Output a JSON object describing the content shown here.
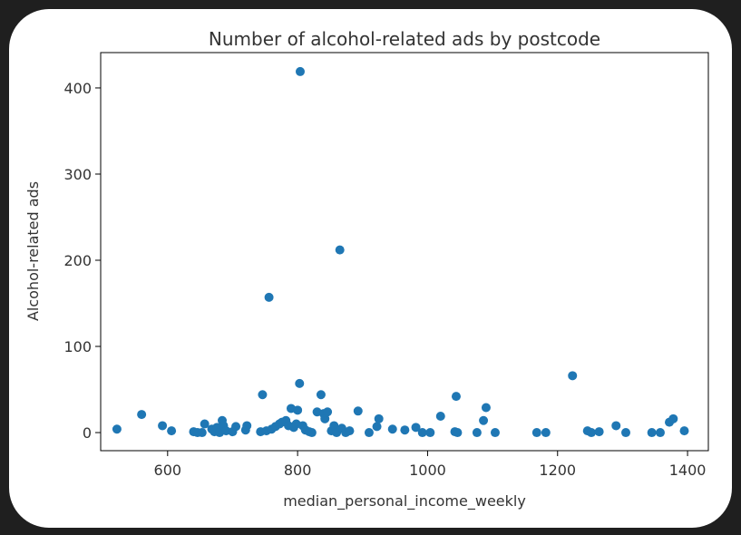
{
  "chart_data": {
    "type": "scatter",
    "title": "Number of alcohol-related ads by postcode",
    "xlabel": "median_personal_income_weekly",
    "ylabel": "Alcohol-related ads",
    "xlim": [
      497,
      1432
    ],
    "ylim": [
      -21,
      441
    ],
    "xticks": [
      600,
      800,
      1000,
      1200,
      1400
    ],
    "yticks": [
      0,
      100,
      200,
      300,
      400
    ],
    "grid": false,
    "marker_color": "#1f77b4",
    "points": [
      [
        522,
        4
      ],
      [
        560,
        21
      ],
      [
        592,
        8
      ],
      [
        606,
        2
      ],
      [
        640,
        1
      ],
      [
        646,
        0
      ],
      [
        653,
        0
      ],
      [
        657,
        10
      ],
      [
        668,
        4
      ],
      [
        672,
        1
      ],
      [
        676,
        6
      ],
      [
        680,
        0
      ],
      [
        684,
        14
      ],
      [
        686,
        8
      ],
      [
        690,
        2
      ],
      [
        700,
        1
      ],
      [
        705,
        7
      ],
      [
        720,
        3
      ],
      [
        722,
        8
      ],
      [
        743,
        1
      ],
      [
        746,
        44
      ],
      [
        752,
        2
      ],
      [
        756,
        157
      ],
      [
        760,
        4
      ],
      [
        766,
        7
      ],
      [
        772,
        10
      ],
      [
        776,
        12
      ],
      [
        782,
        14
      ],
      [
        786,
        8
      ],
      [
        790,
        28
      ],
      [
        794,
        6
      ],
      [
        798,
        10
      ],
      [
        800,
        26
      ],
      [
        803,
        57
      ],
      [
        804,
        419
      ],
      [
        808,
        8
      ],
      [
        812,
        3
      ],
      [
        818,
        1
      ],
      [
        822,
        0
      ],
      [
        830,
        24
      ],
      [
        836,
        44
      ],
      [
        840,
        22
      ],
      [
        842,
        16
      ],
      [
        846,
        24
      ],
      [
        852,
        2
      ],
      [
        856,
        8
      ],
      [
        860,
        0
      ],
      [
        865,
        212
      ],
      [
        868,
        5
      ],
      [
        874,
        0
      ],
      [
        880,
        2
      ],
      [
        893,
        25
      ],
      [
        910,
        0
      ],
      [
        922,
        7
      ],
      [
        925,
        16
      ],
      [
        946,
        4
      ],
      [
        965,
        3
      ],
      [
        982,
        6
      ],
      [
        992,
        0
      ],
      [
        1004,
        0
      ],
      [
        1020,
        19
      ],
      [
        1042,
        1
      ],
      [
        1044,
        42
      ],
      [
        1046,
        0
      ],
      [
        1076,
        0
      ],
      [
        1086,
        14
      ],
      [
        1090,
        29
      ],
      [
        1104,
        0
      ],
      [
        1168,
        0
      ],
      [
        1182,
        0
      ],
      [
        1223,
        66
      ],
      [
        1246,
        2
      ],
      [
        1252,
        0
      ],
      [
        1264,
        1
      ],
      [
        1290,
        8
      ],
      [
        1305,
        0
      ],
      [
        1345,
        0
      ],
      [
        1358,
        0
      ],
      [
        1372,
        12
      ],
      [
        1378,
        16
      ],
      [
        1395,
        2
      ]
    ]
  }
}
